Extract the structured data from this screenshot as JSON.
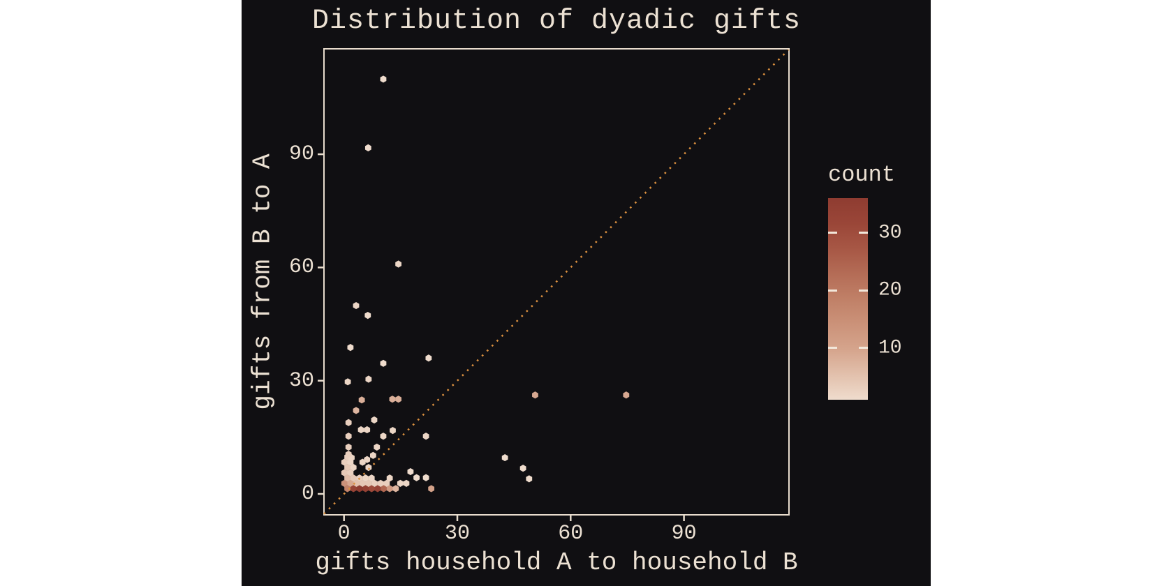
{
  "title": "Distribution of dyadic gifts",
  "x_axis": {
    "label": "gifts household A to household B",
    "ticks": [
      0,
      30,
      60,
      90
    ]
  },
  "y_axis": {
    "label": "gifts from B to A",
    "ticks": [
      0,
      30,
      60,
      90
    ]
  },
  "legend": {
    "title": "count",
    "ticks": [
      30,
      20,
      10
    ],
    "scale_min": 1,
    "scale_max": 36
  },
  "colors": {
    "figure_background": "#100f12",
    "panel_border": "#e8dccd",
    "text": "#ece1d3",
    "identity_line": "#dc9140",
    "colorbar_tick": "#f2e7da",
    "scale_stops": [
      [
        1,
        "#efdccd"
      ],
      [
        10,
        "#d4a28a"
      ],
      [
        20,
        "#bd7a61"
      ],
      [
        30,
        "#9e4a3a"
      ],
      [
        36,
        "#8f3c31"
      ]
    ]
  },
  "chart_data": {
    "type": "hexbin-scatter",
    "title": "Distribution of dyadic gifts",
    "xlabel": "gifts household A to household B",
    "ylabel": "gifts from B to A",
    "xlim": [
      -5.5,
      118
    ],
    "ylim": [
      -5.5,
      118
    ],
    "grid": false,
    "legend_position": "right",
    "count_scale": [
      1,
      36
    ],
    "identity_line": {
      "style": "dotted",
      "slope": 1,
      "intercept": 0
    },
    "points_xyc": [
      [
        0.9,
        1.4,
        18
      ],
      [
        2.5,
        1.4,
        33
      ],
      [
        4.1,
        1.4,
        36
      ],
      [
        5.7,
        1.4,
        34
      ],
      [
        7.3,
        1.4,
        30
      ],
      [
        8.9,
        1.4,
        33
      ],
      [
        10.5,
        1.4,
        24
      ],
      [
        12.1,
        1.4,
        12
      ],
      [
        13.7,
        1.4,
        7
      ],
      [
        23.1,
        1.4,
        10
      ],
      [
        0.1,
        2.8,
        14
      ],
      [
        1.7,
        2.8,
        9
      ],
      [
        3.3,
        2.8,
        5
      ],
      [
        4.9,
        2.8,
        4
      ],
      [
        6.5,
        2.8,
        4
      ],
      [
        8.1,
        2.8,
        3
      ],
      [
        9.7,
        2.8,
        3
      ],
      [
        11.3,
        2.8,
        3
      ],
      [
        14.9,
        2.8,
        2
      ],
      [
        16.5,
        2.8,
        2
      ],
      [
        0.9,
        4.2,
        6
      ],
      [
        2.5,
        4.2,
        4
      ],
      [
        4.1,
        4.2,
        3
      ],
      [
        5.7,
        4.2,
        2
      ],
      [
        7.3,
        4.2,
        2
      ],
      [
        12.1,
        4.2,
        2
      ],
      [
        19.2,
        4.3,
        1
      ],
      [
        21.7,
        4.3,
        1
      ],
      [
        0.1,
        5.6,
        4
      ],
      [
        1.7,
        5.6,
        3
      ],
      [
        17.6,
        5.9,
        1
      ],
      [
        0.9,
        7.0,
        4
      ],
      [
        2.5,
        7.0,
        2
      ],
      [
        6.5,
        7.0,
        2
      ],
      [
        0.1,
        8.4,
        3
      ],
      [
        1.7,
        8.4,
        2
      ],
      [
        4.9,
        8.4,
        2
      ],
      [
        0.9,
        9.8,
        3
      ],
      [
        2.0,
        9.6,
        2
      ],
      [
        6.1,
        9.1,
        2
      ],
      [
        1.2,
        10.5,
        3
      ],
      [
        7.7,
        10.2,
        2
      ],
      [
        1.2,
        12.4,
        3
      ],
      [
        8.7,
        12.4,
        2
      ],
      [
        1.2,
        15.3,
        3
      ],
      [
        10.4,
        15.3,
        2
      ],
      [
        21.7,
        15.3,
        2
      ],
      [
        4.5,
        17.0,
        2
      ],
      [
        6.1,
        17.0,
        2
      ],
      [
        12.9,
        16.8,
        2
      ],
      [
        1.2,
        18.9,
        3
      ],
      [
        8.0,
        19.6,
        2
      ],
      [
        3.2,
        22.1,
        7
      ],
      [
        4.7,
        24.9,
        8
      ],
      [
        12.8,
        25.1,
        8
      ],
      [
        14.4,
        25.1,
        8
      ],
      [
        50.6,
        26.2,
        9
      ],
      [
        74.7,
        26.2,
        9
      ],
      [
        42.6,
        9.6,
        1
      ],
      [
        47.4,
        6.8,
        1
      ],
      [
        49.0,
        4.0,
        1
      ],
      [
        1.0,
        29.7,
        2
      ],
      [
        6.5,
        30.4,
        2
      ],
      [
        10.4,
        34.6,
        1
      ],
      [
        22.4,
        36.0,
        1
      ],
      [
        1.7,
        38.8,
        1
      ],
      [
        6.3,
        47.3,
        1
      ],
      [
        3.2,
        49.9,
        2
      ],
      [
        14.4,
        60.9,
        2
      ],
      [
        6.4,
        91.7,
        1
      ],
      [
        10.4,
        109.9,
        1
      ]
    ]
  }
}
